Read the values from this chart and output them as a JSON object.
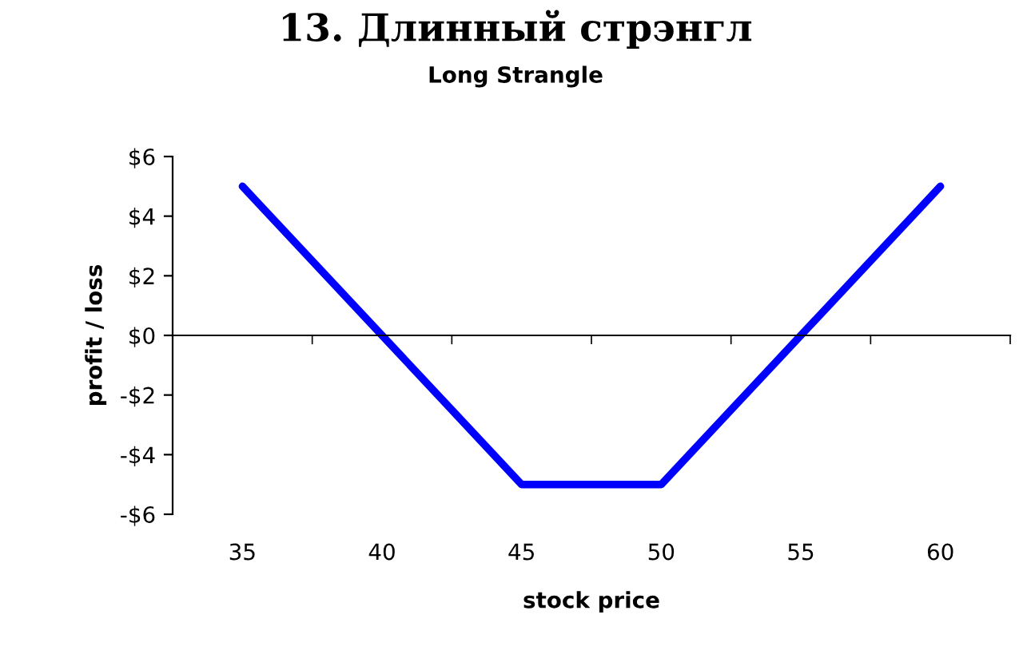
{
  "chart_data": {
    "type": "line",
    "title": "13. Длинный стрэнгл",
    "subtitle": "Long Strangle",
    "xlabel": "stock price",
    "ylabel": "profit / loss",
    "categories": [
      "35",
      "40",
      "45",
      "50",
      "55",
      "60"
    ],
    "series": [
      {
        "color": "#0000ff",
        "values": [
          5,
          0,
          -5,
          -5,
          0,
          5
        ]
      }
    ],
    "ylim": [
      -6,
      6
    ],
    "yticks": [
      {
        "value": -6,
        "label": "-$6"
      },
      {
        "value": -4,
        "label": "-$4"
      },
      {
        "value": -2,
        "label": "-$2"
      },
      {
        "value": 0,
        "label": "$0"
      },
      {
        "value": 2,
        "label": "$2"
      },
      {
        "value": 4,
        "label": "$4"
      },
      {
        "value": 6,
        "label": "$6"
      }
    ],
    "legend": false,
    "marker": "none",
    "line_style": "solid"
  }
}
